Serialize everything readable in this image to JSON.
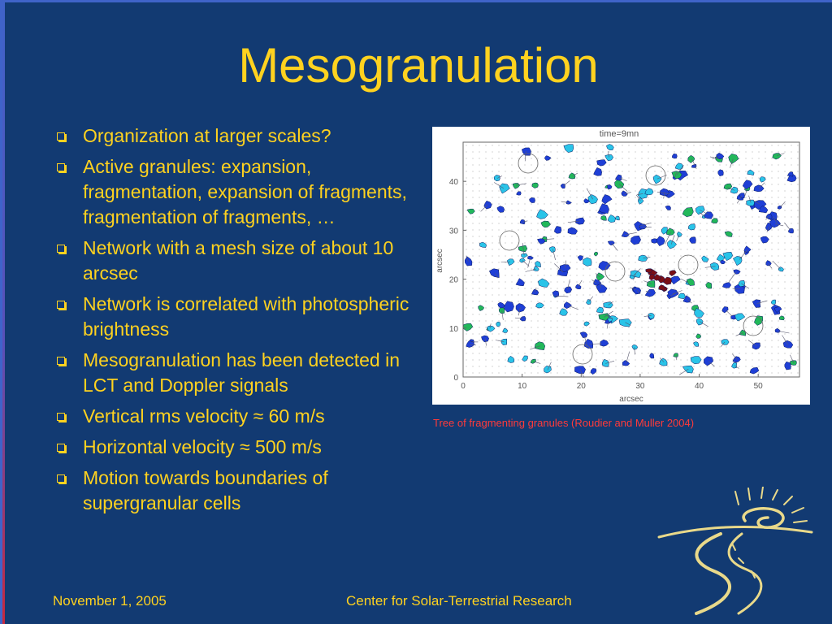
{
  "title": "Mesogranulation",
  "bullets": [
    "Organization at larger scales?",
    "Active granules: expansion, fragmentation, expansion of fragments, fragmentation of fragments, …",
    "Network with a mesh size of about 10 arcsec",
    "Network is correlated with photospheric brightness",
    "Mesogranulation has been detected in LCT and Doppler signals",
    "Vertical rms velocity ≈ 60 m/s",
    "Horizontal velocity ≈ 500 m/s",
    "Motion towards boundaries of supergranular cells"
  ],
  "figure": {
    "time_label": "time=9mn",
    "xlabel": "arcsec",
    "ylabel": "arcsec",
    "x_ticks": [
      "0",
      "10",
      "20",
      "30",
      "40",
      "50"
    ],
    "y_ticks": [
      "0",
      "10",
      "20",
      "30",
      "40"
    ],
    "colors": {
      "granule_blue": "#1f3fd6",
      "granule_cyan": "#2ac4e8",
      "granule_green": "#22b85a",
      "granule_dark_red": "#7a0f16",
      "arrow": "#5a5a70"
    }
  },
  "caption": "Tree of fragmenting granules (Roudier and Muller 2004)",
  "footer": {
    "date": "November 1, 2005",
    "center": "Center for Solar-Terrestrial Research"
  },
  "theme": {
    "background": "#123a72",
    "text": "#ffd21f",
    "caption": "#ff3a3a"
  }
}
